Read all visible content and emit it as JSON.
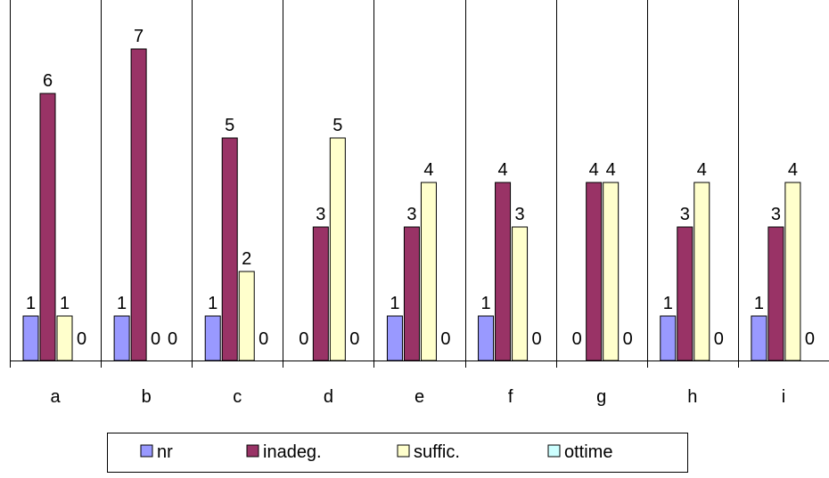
{
  "chart_data": {
    "type": "bar",
    "categories": [
      "a",
      "b",
      "c",
      "d",
      "e",
      "f",
      "g",
      "h",
      "i"
    ],
    "series": [
      {
        "name": "nr",
        "values": [
          1,
          1,
          1,
          0,
          1,
          1,
          0,
          1,
          1
        ],
        "color": "#9999ff"
      },
      {
        "name": "inadeg.",
        "values": [
          6,
          7,
          5,
          3,
          3,
          4,
          4,
          3,
          3
        ],
        "color": "#993366"
      },
      {
        "name": "suffic.",
        "values": [
          1,
          0,
          2,
          5,
          4,
          3,
          4,
          4,
          4
        ],
        "color": "#ffffcc"
      },
      {
        "name": "ottime",
        "values": [
          0,
          0,
          0,
          0,
          0,
          0,
          0,
          0,
          0
        ],
        "color": "#ccffff"
      }
    ],
    "data_labels_shown": [
      [
        true,
        true,
        true,
        true
      ],
      [
        true,
        true,
        true,
        true
      ],
      [
        true,
        true,
        true,
        true
      ],
      [
        true,
        true,
        true,
        true
      ],
      [
        true,
        true,
        true,
        true
      ],
      [
        true,
        true,
        true,
        true
      ],
      [
        true,
        true,
        true,
        true
      ],
      [
        true,
        true,
        true,
        true
      ],
      [
        true,
        true,
        true,
        true
      ]
    ],
    "title": "",
    "xlabel": "",
    "ylabel": "",
    "ylim": [
      0,
      8
    ],
    "grid": "vertical category separators",
    "legend_position": "bottom"
  }
}
